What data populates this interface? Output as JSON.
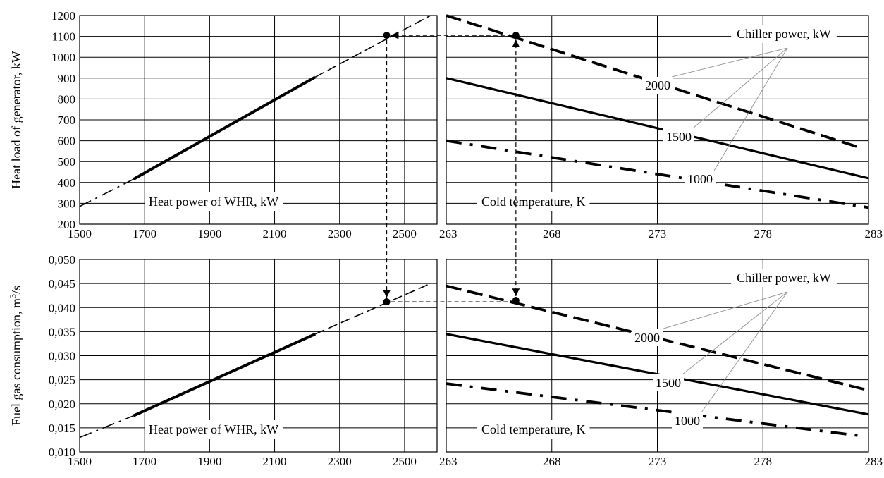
{
  "chart_data": [
    {
      "id": "top-left",
      "type": "line",
      "ylabel": "Heat load of generator, kW",
      "xlabel": "",
      "annotation": "Heat power of WHR, kW",
      "xlim": [
        1500,
        2600
      ],
      "ylim": [
        200,
        1200
      ],
      "x_ticks": [
        "1500",
        "1700",
        "1900",
        "2100",
        "2300",
        "2500"
      ],
      "y_ticks": [
        "200",
        "300",
        "400",
        "500",
        "600",
        "700",
        "800",
        "900",
        "1000",
        "1100",
        "1200"
      ],
      "series": [
        {
          "style": "dashdot",
          "x": [
            1500,
            1665
          ],
          "y": [
            285,
            415
          ]
        },
        {
          "style": "solid",
          "x": [
            1665,
            2225
          ],
          "y": [
            415,
            905
          ]
        },
        {
          "style": "dashed",
          "x": [
            2225,
            2580
          ],
          "y": [
            905,
            1200
          ]
        }
      ],
      "marker": {
        "x": 2445,
        "y": 1105
      }
    },
    {
      "id": "top-right",
      "type": "line",
      "ylabel": "",
      "xlabel": "",
      "annotation": "Cold temperature, K",
      "legend_title": "Chiller power, kW",
      "xlim": [
        263,
        283
      ],
      "ylim": [
        200,
        1200
      ],
      "x_ticks": [
        "263",
        "268",
        "273",
        "278",
        "283"
      ],
      "series": [
        {
          "name": "2000",
          "style": "dashed",
          "x": [
            263,
            282.5
          ],
          "y": [
            1200,
            570
          ]
        },
        {
          "name": "1500",
          "style": "solid",
          "x": [
            263,
            283
          ],
          "y": [
            900,
            420
          ]
        },
        {
          "name": "1000",
          "style": "dashdot",
          "x": [
            263,
            283
          ],
          "y": [
            600,
            280
          ]
        }
      ],
      "marker": {
        "x": 266.3,
        "y": 1105
      }
    },
    {
      "id": "bottom-left",
      "type": "line",
      "ylabel": "Fuel gas consumption, m³/s",
      "xlabel": "",
      "annotation": "Heat power of WHR, kW",
      "xlim": [
        1500,
        2600
      ],
      "ylim": [
        0.01,
        0.05
      ],
      "x_ticks": [
        "1500",
        "1700",
        "1900",
        "2100",
        "2300",
        "2500"
      ],
      "y_ticks": [
        "0,010",
        "0,015",
        "0,020",
        "0,025",
        "0,030",
        "0,035",
        "0,040",
        "0,045",
        "0,050"
      ],
      "series": [
        {
          "style": "dashdot",
          "x": [
            1500,
            1665
          ],
          "y": [
            0.013,
            0.0175
          ]
        },
        {
          "style": "solid",
          "x": [
            1665,
            2225
          ],
          "y": [
            0.0175,
            0.0345
          ]
        },
        {
          "style": "dashed",
          "x": [
            2225,
            2580
          ],
          "y": [
            0.0345,
            0.045
          ]
        }
      ],
      "marker": {
        "x": 2445,
        "y": 0.0412
      }
    },
    {
      "id": "bottom-right",
      "type": "line",
      "ylabel": "",
      "xlabel": "",
      "annotation": "Cold temperature, K",
      "legend_title": "Chiller power, kW",
      "xlim": [
        263,
        283
      ],
      "ylim": [
        0.01,
        0.05
      ],
      "x_ticks": [
        "263",
        "268",
        "273",
        "278",
        "283"
      ],
      "series": [
        {
          "name": "2000",
          "style": "dashed",
          "x": [
            263,
            283
          ],
          "y": [
            0.0445,
            0.0228
          ]
        },
        {
          "name": "1500",
          "style": "solid",
          "x": [
            263,
            283
          ],
          "y": [
            0.0345,
            0.0178
          ]
        },
        {
          "name": "1000",
          "style": "dashdot",
          "x": [
            263,
            282.5
          ],
          "y": [
            0.0242,
            0.0134
          ]
        }
      ],
      "marker": {
        "x": 266.3,
        "y": 0.0415
      }
    }
  ]
}
